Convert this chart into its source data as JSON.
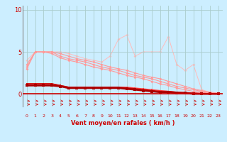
{
  "background_color": "#cceeff",
  "grid_color": "#aacccc",
  "line_color_dark": "#cc0000",
  "xlabel": "Vent moyen/en rafales ( km/h )",
  "xlabel_color": "#cc0000",
  "tick_color": "#cc0000",
  "yticks": [
    0,
    5,
    10
  ],
  "xlim": [
    -0.5,
    23.5
  ],
  "ylim": [
    -1.5,
    10.5
  ],
  "series": [
    {
      "x": [
        0,
        1,
        2,
        3,
        4,
        5,
        6,
        7,
        8,
        9,
        10,
        11,
        12,
        13,
        14,
        15,
        16,
        17,
        18,
        19,
        20,
        21,
        22,
        23
      ],
      "y": [
        3.5,
        5.0,
        5.0,
        5.0,
        4.8,
        4.5,
        4.2,
        4.0,
        3.8,
        3.5,
        3.2,
        3.0,
        2.8,
        2.5,
        2.2,
        2.0,
        1.8,
        1.5,
        1.2,
        0.9,
        0.6,
        0.4,
        0.2,
        0.1
      ],
      "color": "#ff9999",
      "lw": 0.8,
      "marker": "D",
      "ms": 2.0,
      "zorder": 2
    },
    {
      "x": [
        0,
        1,
        2,
        3,
        4,
        5,
        6,
        7,
        8,
        9,
        10,
        11,
        12,
        13,
        14,
        15,
        16,
        17,
        18,
        19,
        20,
        21,
        22,
        23
      ],
      "y": [
        3.2,
        5.0,
        5.0,
        5.0,
        4.5,
        4.2,
        4.0,
        3.8,
        3.5,
        3.2,
        3.0,
        2.8,
        2.5,
        2.2,
        2.0,
        1.8,
        1.5,
        1.2,
        0.9,
        0.7,
        0.5,
        0.3,
        0.1,
        0.0
      ],
      "color": "#ff9999",
      "lw": 0.8,
      "marker": "D",
      "ms": 2.0,
      "zorder": 2
    },
    {
      "x": [
        0,
        1,
        2,
        3,
        4,
        5,
        6,
        7,
        8,
        9,
        10,
        11,
        12,
        13,
        14,
        15,
        16,
        17,
        18,
        19,
        20,
        21,
        22,
        23
      ],
      "y": [
        3.0,
        5.0,
        5.0,
        4.8,
        4.3,
        4.0,
        3.8,
        3.5,
        3.2,
        3.0,
        2.8,
        2.5,
        2.2,
        2.0,
        1.8,
        1.5,
        1.2,
        1.0,
        0.7,
        0.5,
        0.3,
        0.2,
        0.1,
        0.0
      ],
      "color": "#ff9999",
      "lw": 0.8,
      "marker": "D",
      "ms": 2.0,
      "zorder": 2
    },
    {
      "x": [
        0,
        1,
        2,
        3,
        4,
        5,
        6,
        7,
        8,
        9,
        10,
        11,
        12,
        13,
        14,
        15,
        16,
        17,
        18,
        19,
        20,
        21,
        22,
        23
      ],
      "y": [
        4.0,
        5.0,
        5.0,
        5.0,
        5.0,
        4.8,
        4.5,
        4.2,
        4.0,
        3.8,
        4.5,
        6.5,
        7.0,
        4.5,
        5.0,
        5.0,
        5.0,
        6.8,
        3.5,
        2.8,
        3.5,
        0.5,
        0.2,
        0.1
      ],
      "color": "#ffbbbb",
      "lw": 0.7,
      "marker": "D",
      "ms": 2.0,
      "zorder": 1
    },
    {
      "x": [
        0,
        1,
        2,
        3,
        4,
        5,
        6,
        7,
        8,
        9,
        10,
        11,
        12,
        13,
        14,
        15,
        16,
        17,
        18,
        19,
        20,
        21,
        22,
        23
      ],
      "y": [
        1.2,
        1.2,
        1.2,
        1.2,
        1.0,
        0.8,
        0.8,
        0.8,
        0.8,
        0.8,
        0.8,
        0.8,
        0.8,
        0.7,
        0.6,
        0.5,
        0.4,
        0.3,
        0.2,
        0.2,
        0.1,
        0.1,
        0.0,
        0.0
      ],
      "color": "#ff4444",
      "lw": 1.0,
      "marker": "s",
      "ms": 2.0,
      "zorder": 3
    },
    {
      "x": [
        0,
        1,
        2,
        3,
        4,
        5,
        6,
        7,
        8,
        9,
        10,
        11,
        12,
        13,
        14,
        15,
        16,
        17,
        18,
        19,
        20,
        21,
        22,
        23
      ],
      "y": [
        1.2,
        1.2,
        1.2,
        1.2,
        1.0,
        0.8,
        0.8,
        0.8,
        0.8,
        0.8,
        0.8,
        0.8,
        0.7,
        0.6,
        0.5,
        0.4,
        0.3,
        0.3,
        0.2,
        0.1,
        0.1,
        0.0,
        0.0,
        0.0
      ],
      "color": "#cc0000",
      "lw": 1.2,
      "marker": "s",
      "ms": 2.0,
      "zorder": 4
    },
    {
      "x": [
        0,
        1,
        2,
        3,
        4,
        5,
        6,
        7,
        8,
        9,
        10,
        11,
        12,
        13,
        14,
        15,
        16,
        17,
        18,
        19,
        20,
        21,
        22,
        23
      ],
      "y": [
        1.0,
        1.0,
        1.0,
        1.0,
        0.9,
        0.7,
        0.7,
        0.7,
        0.7,
        0.7,
        0.7,
        0.7,
        0.6,
        0.5,
        0.4,
        0.3,
        0.2,
        0.2,
        0.1,
        0.1,
        0.0,
        0.0,
        0.0,
        0.0
      ],
      "color": "#aa0000",
      "lw": 1.8,
      "marker": "s",
      "ms": 2.5,
      "zorder": 5
    }
  ]
}
